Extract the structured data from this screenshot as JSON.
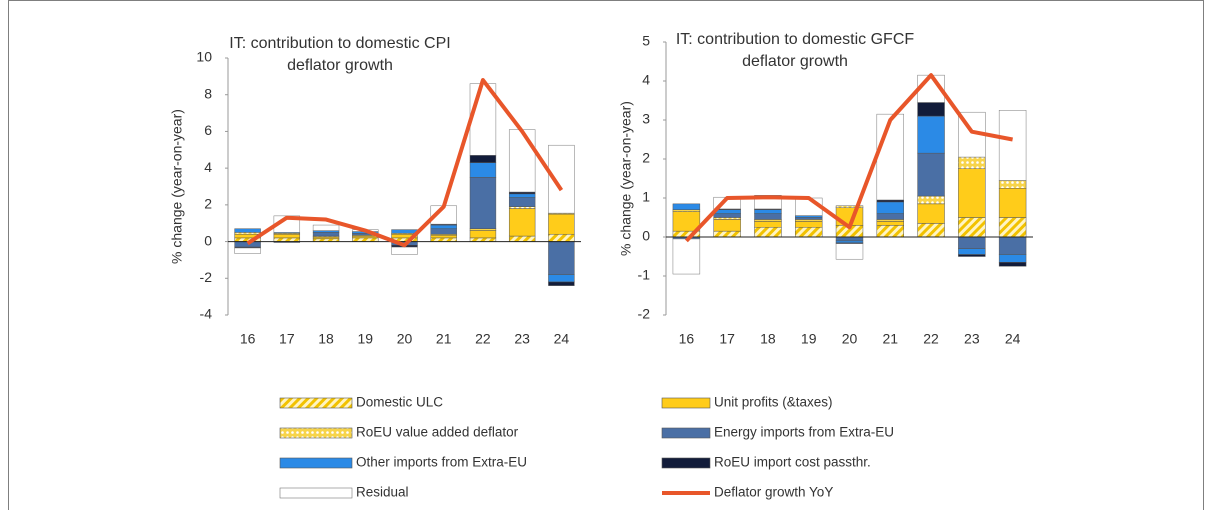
{
  "chart_data": [
    {
      "type": "bar",
      "title": [
        "IT: contribution to domestic CPI",
        "deflator growth"
      ],
      "y_label": "% change (year-on-year)",
      "categories": [
        "16",
        "17",
        "18",
        "19",
        "20",
        "21",
        "22",
        "23",
        "24"
      ],
      "ylim": [
        -4,
        10
      ],
      "yticks": [
        -4,
        -2,
        0,
        2,
        4,
        6,
        8,
        10
      ],
      "grid": false,
      "series": [
        {
          "name": "Domestic ULC",
          "color": "#f2c200",
          "pattern": "hatch",
          "values": [
            0.2,
            0.2,
            0.15,
            0.2,
            0.2,
            0.2,
            0.2,
            0.3,
            0.4
          ]
        },
        {
          "name": "Unit profits (&taxes)",
          "color": "#ffcc1a",
          "values": [
            0.2,
            0.2,
            0.1,
            0.1,
            0.2,
            0.15,
            0.4,
            1.5,
            1.1
          ]
        },
        {
          "name": "RoEU value added deflator",
          "color": "#f7d44a",
          "pattern": "dots",
          "values": [
            0.1,
            0.05,
            0.05,
            0.05,
            0.05,
            0.05,
            0.1,
            0.1,
            0.05
          ]
        },
        {
          "name": "Energy imports from Extra-EU",
          "color": "#4a6fa5",
          "values": [
            -0.3,
            -0.05,
            0.2,
            0.1,
            -0.2,
            0.3,
            2.8,
            0.5,
            -1.8
          ]
        },
        {
          "name": "Other imports from Extra-EU",
          "color": "#2b8ae6",
          "values": [
            0.2,
            0.05,
            0.1,
            0.1,
            0.2,
            0.2,
            0.8,
            0.2,
            -0.4
          ]
        },
        {
          "name": "RoEU import cost passthr.",
          "color": "#121c3a",
          "values": [
            -0.05,
            0,
            0,
            0,
            -0.1,
            0.05,
            0.4,
            0.1,
            -0.2
          ]
        },
        {
          "name": "Residual",
          "color": "#ffffff",
          "values": [
            -0.3,
            0.9,
            0.3,
            0.1,
            -0.4,
            1.0,
            3.9,
            3.4,
            3.7
          ]
        },
        {
          "name": "Deflator growth YoY",
          "color": "#e8562a",
          "type": "line",
          "values": [
            -0.1,
            1.3,
            1.2,
            0.6,
            -0.2,
            1.9,
            8.8,
            6.0,
            2.8
          ]
        }
      ]
    },
    {
      "type": "bar",
      "title": [
        "IT: contribution to domestic GFCF",
        "deflator growth"
      ],
      "y_label": "% change (year-on-year)",
      "categories": [
        "16",
        "17",
        "18",
        "19",
        "20",
        "21",
        "22",
        "23",
        "24"
      ],
      "ylim": [
        -2,
        5
      ],
      "yticks": [
        -2,
        -1,
        0,
        1,
        2,
        3,
        4,
        5
      ],
      "grid": false,
      "series": [
        {
          "values": [
            0.15,
            0.15,
            0.25,
            0.25,
            0.3,
            0.3,
            0.35,
            0.5,
            0.5
          ]
        },
        {
          "values": [
            0.5,
            0.3,
            0.15,
            0.15,
            0.45,
            0.1,
            0.5,
            1.25,
            0.75
          ]
        },
        {
          "values": [
            0.05,
            0.05,
            0.05,
            0.05,
            0.05,
            0.05,
            0.2,
            0.3,
            0.2
          ]
        },
        {
          "values": [
            -0.05,
            0.1,
            0.15,
            0.05,
            -0.1,
            0.15,
            1.1,
            -0.3,
            -0.45
          ]
        },
        {
          "values": [
            0.15,
            0.1,
            0.1,
            0.05,
            -0.05,
            0.3,
            0.95,
            -0.15,
            -0.2
          ]
        },
        {
          "values": [
            0,
            0.02,
            0.02,
            0,
            -0.02,
            0.05,
            0.35,
            -0.05,
            -0.1
          ]
        },
        {
          "values": [
            -0.9,
            0.3,
            0.35,
            0.45,
            -0.4,
            2.2,
            0.7,
            1.15,
            1.8
          ]
        },
        {
          "type": "line",
          "values": [
            -0.1,
            1.0,
            1.02,
            1.0,
            0.25,
            3.0,
            4.15,
            2.7,
            2.5
          ]
        }
      ]
    }
  ]
}
